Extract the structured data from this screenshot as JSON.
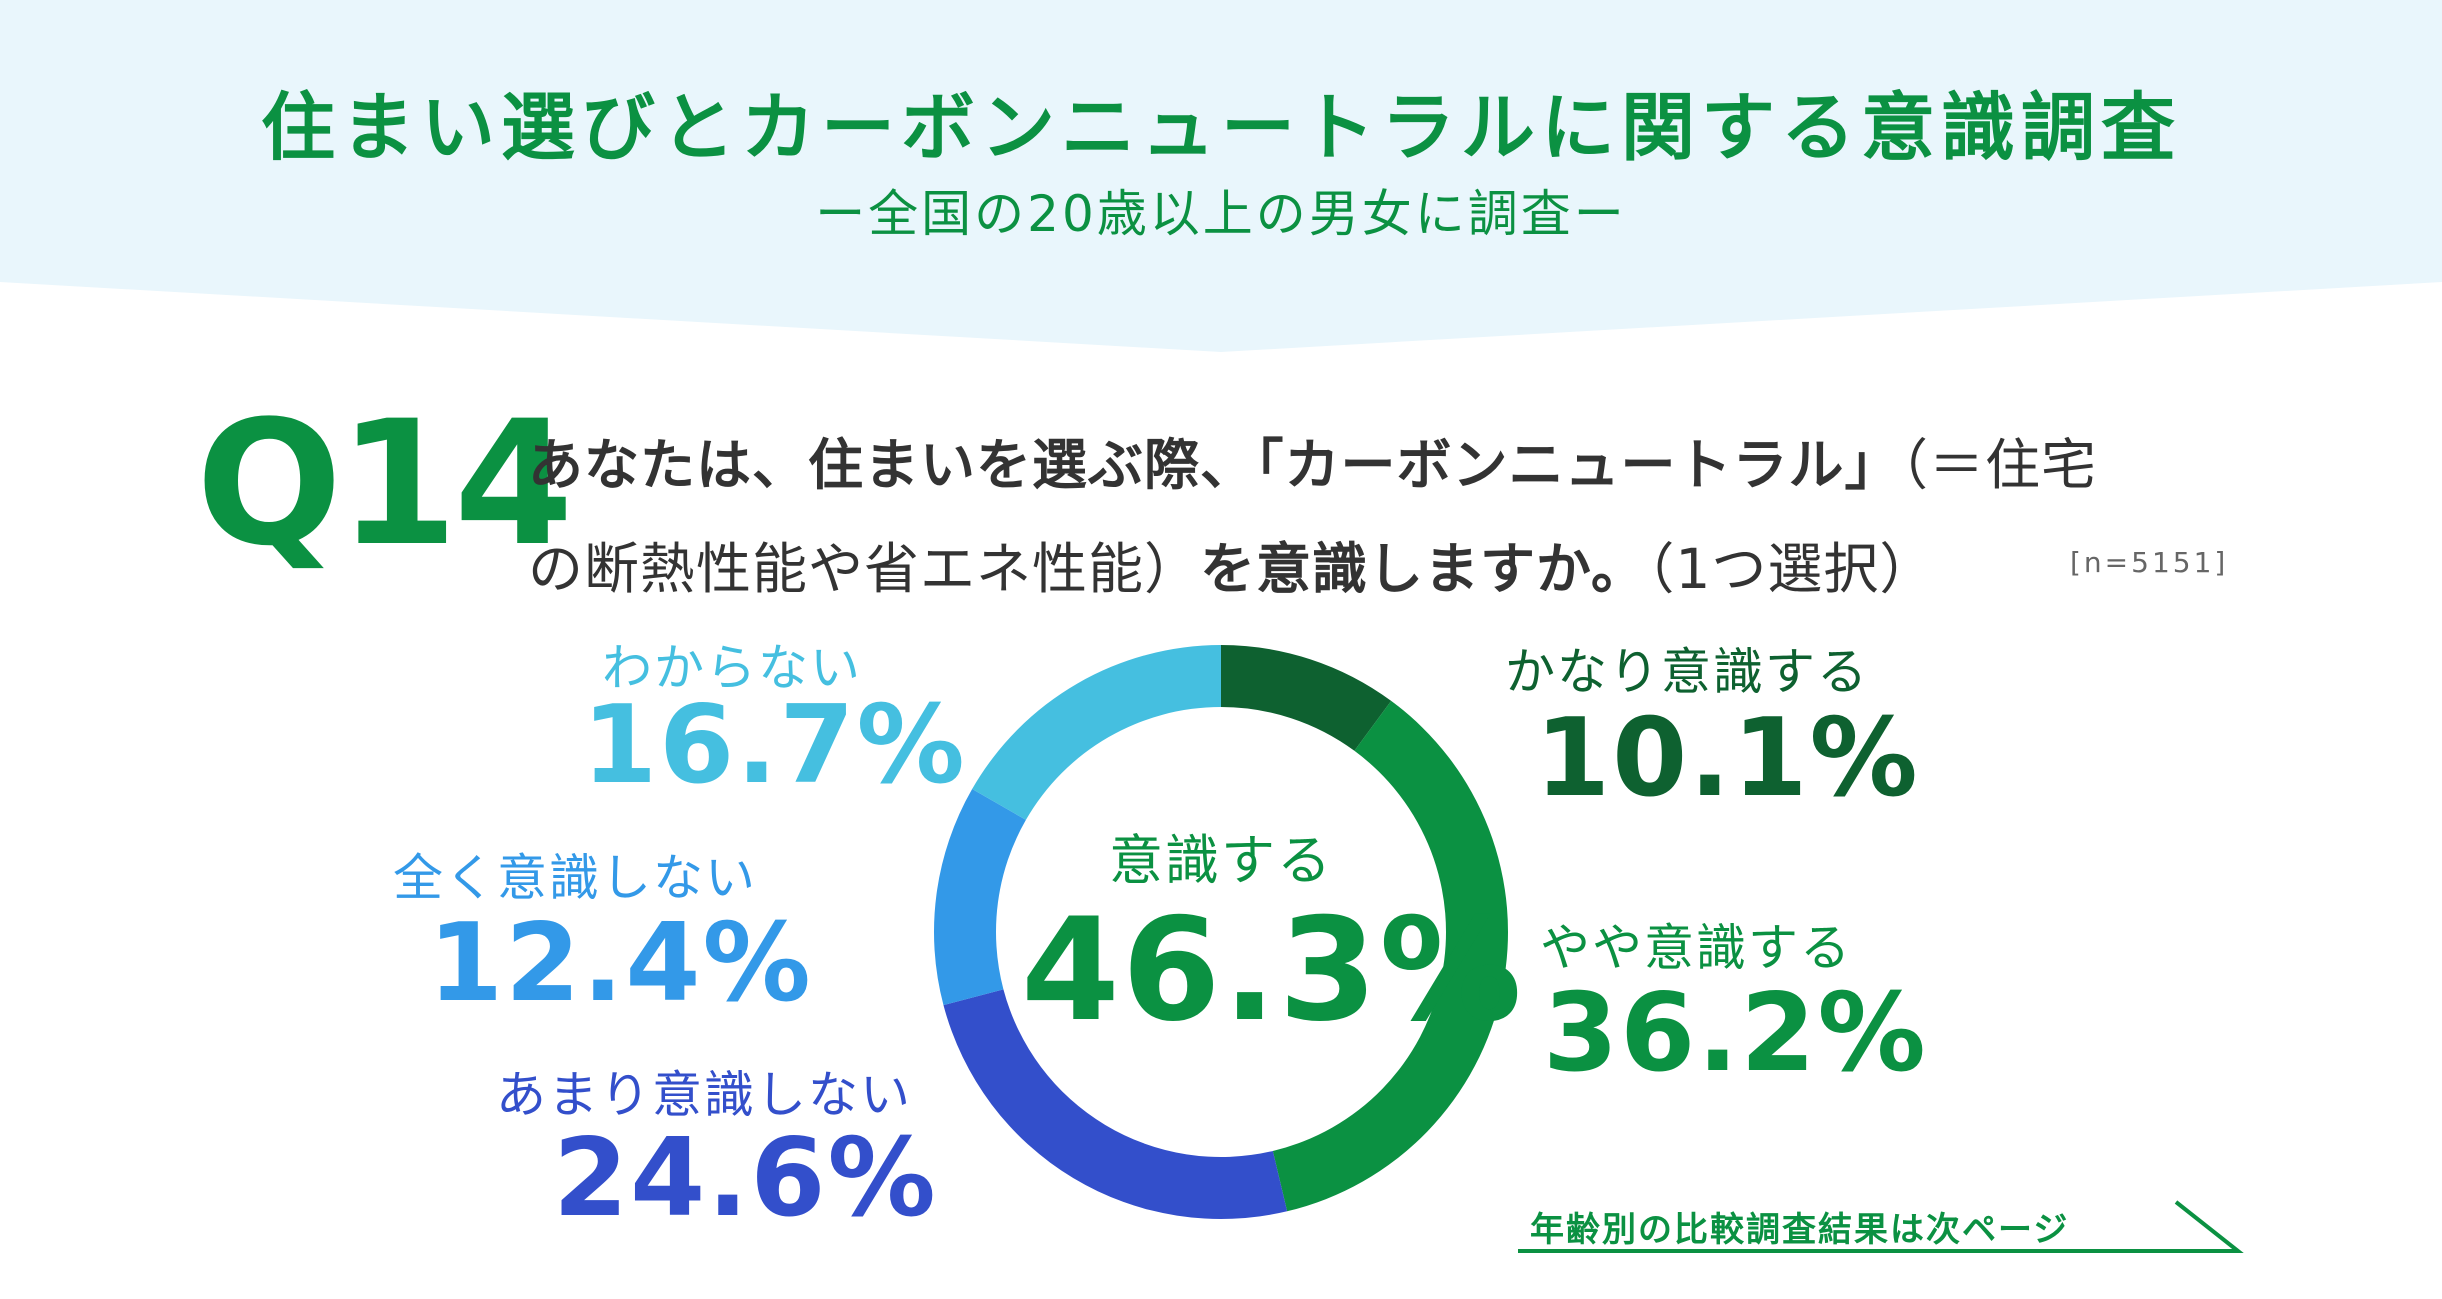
{
  "header": {
    "title": "住まい選びとカーボンニュートラルに関する意識調査",
    "subtitle": "ー全国の20歳以上の男女に調査ー"
  },
  "question": {
    "number": "Q14",
    "line1_bold": "あなたは、住まいを選ぶ際、「カーボンニュートラル」",
    "line1_rest": "（＝住宅",
    "line2_start": "の断熱性能や省エネ性能）",
    "line2_bold": "を意識しますか。",
    "line2_end": "（1つ選択）",
    "sample_size": "[n=5151]"
  },
  "center": {
    "label": "意識する",
    "value_text": "46.3%"
  },
  "footer": {
    "next_page": "年齢別の比較調査結果は次ページ"
  },
  "colors": {
    "brand_green": "#0b9142",
    "banner_bg": "#e9f6fc",
    "next_line": "#0b9142"
  },
  "chart_data": {
    "type": "pie",
    "variant": "donut",
    "unit": "%",
    "slices": [
      {
        "label": "かなり意識する",
        "value": 10.1,
        "value_text": "10.1%",
        "color": "#0e6130"
      },
      {
        "label": "やや意識する",
        "value": 36.2,
        "value_text": "36.2%",
        "color": "#0b9142"
      },
      {
        "label": "あまり意識しない",
        "value": 24.6,
        "value_text": "24.6%",
        "color": "#334fcb"
      },
      {
        "label": "全く意識しない",
        "value": 12.4,
        "value_text": "12.4%",
        "color": "#3399e8"
      },
      {
        "label": "わからない",
        "value": 16.7,
        "value_text": "16.7%",
        "color": "#45bfe0"
      }
    ]
  }
}
